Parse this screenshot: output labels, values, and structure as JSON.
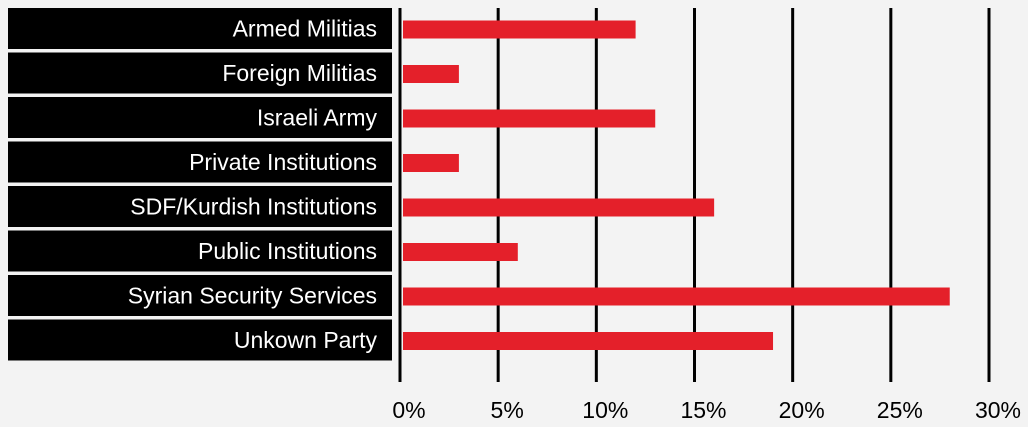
{
  "chart_data": {
    "type": "bar",
    "orientation": "horizontal",
    "categories": [
      "Armed Militias",
      "Foreign Militias",
      "Israeli Army",
      "Private Institutions",
      "SDF/Kurdish Institutions",
      "Public Institutions",
      "Syrian Security Services",
      "Unkown Party"
    ],
    "values": [
      12,
      3,
      13,
      3,
      16,
      6,
      28,
      19
    ],
    "x_ticks": [
      "0%",
      "5%",
      "10%",
      "15%",
      "20%",
      "25%",
      "30%"
    ],
    "xlim": [
      0,
      30
    ],
    "grid": "vertical",
    "colors": {
      "bar": "#e4202a",
      "label_background": "#000000",
      "label_text": "#ffffff",
      "gridline": "#000000",
      "background": "#f3f3f3"
    }
  }
}
